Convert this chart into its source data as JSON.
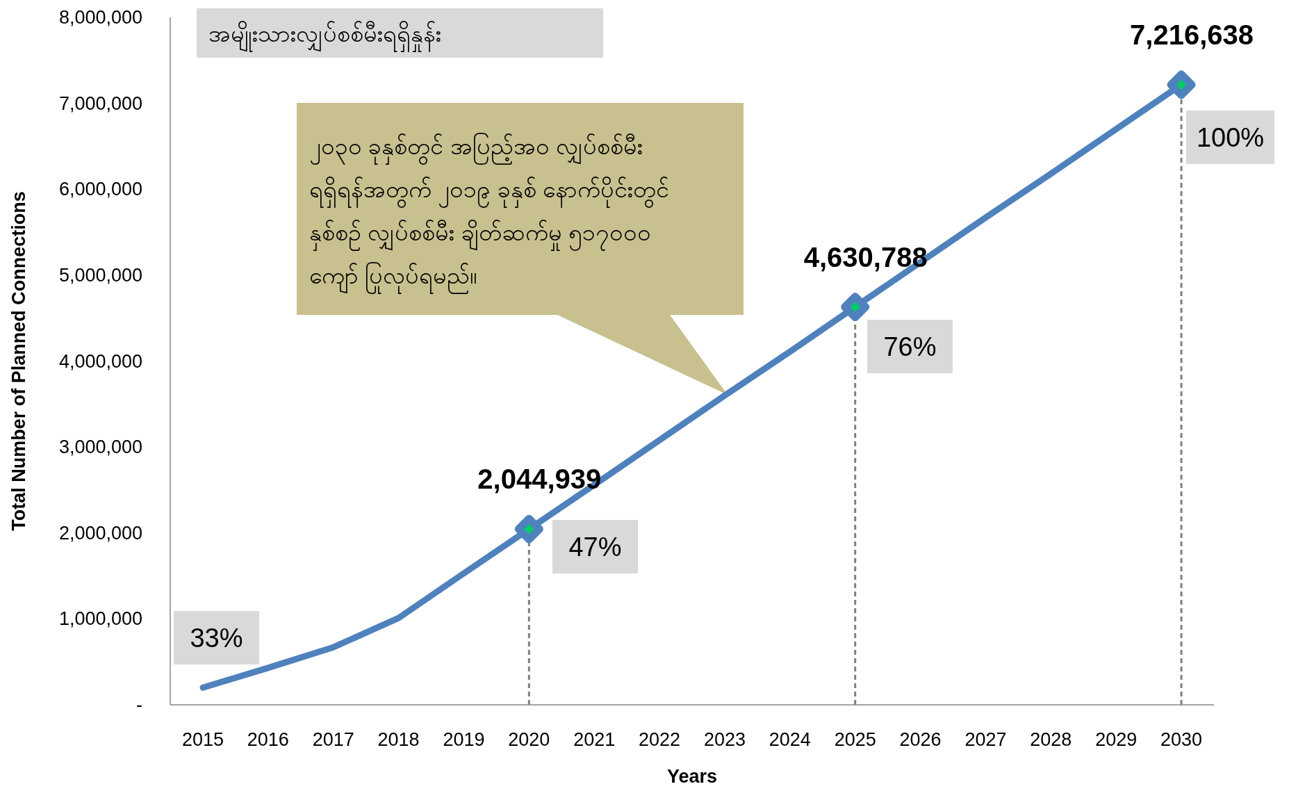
{
  "chart_data": {
    "type": "line",
    "title": "အမျိုးသားလျှပ်စစ်မီးရရှိနှုန်း",
    "xlabel": "Years",
    "ylabel": "Total Number of Planned Connections",
    "categories": [
      "2015",
      "2016",
      "2017",
      "2018",
      "2019",
      "2020",
      "2021",
      "2022",
      "2023",
      "2024",
      "2025",
      "2026",
      "2027",
      "2028",
      "2029",
      "2030"
    ],
    "series": [
      {
        "color": "#4f81bd",
        "values": [
          200000,
          430000,
          670000,
          1010000,
          1530000,
          2044939,
          2560000,
          3080000,
          3600000,
          4110000,
          4630788,
          5150000,
          5670000,
          6180000,
          6700000,
          7216638
        ],
        "value_labels": [
          null,
          null,
          null,
          null,
          null,
          "2,044,939",
          null,
          null,
          null,
          null,
          "4,630,788",
          null,
          null,
          null,
          null,
          "7,216,638"
        ]
      },
      {
        "type": "scatter",
        "marker": "diamond",
        "color": "#00cc66",
        "values": [
          null,
          null,
          null,
          null,
          null,
          2044939,
          null,
          null,
          null,
          null,
          4630788,
          null,
          null,
          null,
          null,
          7216638
        ]
      }
    ],
    "ylim": [
      0,
      8000000
    ],
    "yticks": [
      {
        "value": 0,
        "label": "-"
      },
      {
        "value": 1000000,
        "label": "1,000,000"
      },
      {
        "value": 2000000,
        "label": "2,000,000"
      },
      {
        "value": 3000000,
        "label": "3,000,000"
      },
      {
        "value": 4000000,
        "label": "4,000,000"
      },
      {
        "value": 5000000,
        "label": "5,000,000"
      },
      {
        "value": 6000000,
        "label": "6,000,000"
      },
      {
        "value": 7000000,
        "label": "7,000,000"
      },
      {
        "value": 8000000,
        "label": "8,000,000"
      }
    ],
    "annotations": [
      "33%",
      "47%",
      "76%",
      "100%",
      "၂၀၃၀ ခုနှစ်တွင် အပြည့်အဝ လျှပ်စစ်မီး\nရရှိရန်အတွက် ၂၀၁၉ ခုနှစ် နောက်ပိုင်းတွင်\nနှစ်စဉ် လျှပ်စစ်မီး ချိတ်ဆက်မှု ၅၁၇၀၀၀\nကျော် ပြုလုပ်ရမည်။"
    ],
    "relative": false
  }
}
